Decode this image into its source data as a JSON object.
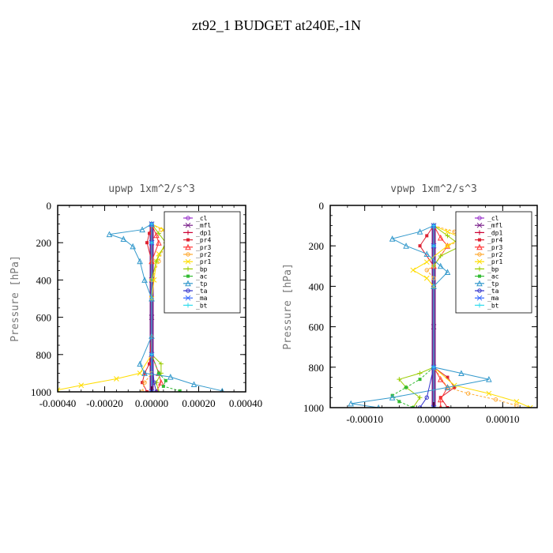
{
  "figure": {
    "title": "zt92_1  BUDGET at240E,-1N"
  },
  "chart_data": [
    {
      "type": "line",
      "title": "upwp  1xm^2/s^3",
      "ylabel": "Pressure [hPa]",
      "xlabel": "",
      "xlim": [
        -0.0004,
        0.0004
      ],
      "ylim": [
        1000,
        0
      ],
      "y_inverted": true,
      "xticks": [
        "-0.00040",
        "-0.00020",
        "0.00000",
        "0.00020",
        "0.00040"
      ],
      "xtick_values": [
        -0.0004,
        -0.0002,
        0,
        0.0002,
        0.0004
      ],
      "yticks": [
        "0",
        "200",
        "400",
        "600",
        "800",
        "1000"
      ],
      "ytick_values": [
        0,
        200,
        400,
        600,
        800,
        1000
      ],
      "grid": false,
      "legend_position": "top-right",
      "series": [
        {
          "name": "_cl",
          "color": "#9933cc",
          "values": [
            [
              0,
              100
            ],
            [
              0,
              200
            ],
            [
              0,
              400
            ],
            [
              0,
              600
            ],
            [
              0,
              800
            ],
            [
              0,
              1000
            ]
          ]
        },
        {
          "name": "_mfl",
          "color": "#7a1f8a",
          "values": [
            [
              0,
              100
            ],
            [
              0,
              200
            ],
            [
              0,
              400
            ],
            [
              0,
              600
            ],
            [
              0,
              800
            ],
            [
              0,
              1000
            ]
          ]
        },
        {
          "name": "_dp1",
          "color": "#cc0033",
          "values": [
            [
              0,
              100
            ],
            [
              0,
              200
            ],
            [
              0,
              400
            ],
            [
              0,
              800
            ],
            [
              0,
              1000
            ]
          ]
        },
        {
          "name": "_pr4",
          "color": "#dd2233",
          "values": [
            [
              0,
              100
            ],
            [
              -1e-05,
              150
            ],
            [
              -2e-05,
              200
            ],
            [
              0,
              300
            ],
            [
              0,
              700
            ],
            [
              -1e-05,
              850
            ],
            [
              -3e-05,
              900
            ],
            [
              -4e-05,
              950
            ],
            [
              -2e-05,
              1000
            ]
          ]
        },
        {
          "name": "_pr3",
          "color": "#ff3333",
          "values": [
            [
              0,
              100
            ],
            [
              2e-05,
              160
            ],
            [
              3e-05,
              200
            ],
            [
              0,
              300
            ],
            [
              0,
              800
            ],
            [
              3e-05,
              900
            ],
            [
              4e-05,
              950
            ],
            [
              2e-05,
              1000
            ]
          ]
        },
        {
          "name": "_pr2",
          "color": "#ffaa33",
          "values": [
            [
              0,
              100
            ],
            [
              4e-05,
              130
            ],
            [
              8e-05,
              160
            ],
            [
              6e-05,
              200
            ],
            [
              3e-05,
              300
            ],
            [
              0,
              400
            ],
            [
              0,
              800
            ],
            [
              0,
              900
            ],
            [
              -3e-05,
              950
            ],
            [
              -4e-05,
              1000
            ]
          ]
        },
        {
          "name": "_pr1",
          "color": "#ffdd00",
          "values": [
            [
              0,
              100
            ],
            [
              5e-05,
              130
            ],
            [
              0.0001,
              165
            ],
            [
              7e-05,
              200
            ],
            [
              3e-05,
              260
            ],
            [
              2e-05,
              300
            ],
            [
              1e-05,
              400
            ],
            [
              0,
              500
            ],
            [
              0,
              800
            ],
            [
              -5e-05,
              900
            ],
            [
              -0.00015,
              930
            ],
            [
              -0.0003,
              965
            ],
            [
              -0.0004,
              990
            ]
          ]
        },
        {
          "name": "_bp",
          "color": "#99cc00",
          "values": [
            [
              0,
              100
            ],
            [
              3e-05,
              150
            ],
            [
              6e-05,
              200
            ],
            [
              2e-05,
              300
            ],
            [
              0,
              400
            ],
            [
              0,
              800
            ],
            [
              4e-05,
              850
            ],
            [
              4e-05,
              900
            ],
            [
              2e-05,
              950
            ],
            [
              3e-05,
              1000
            ]
          ]
        },
        {
          "name": "_ac",
          "color": "#33bb33",
          "values": [
            [
              0,
              100
            ],
            [
              0,
              200
            ],
            [
              0,
              800
            ],
            [
              3e-05,
              900
            ],
            [
              6e-05,
              940
            ],
            [
              5e-05,
              970
            ],
            [
              0.00012,
              995
            ]
          ]
        },
        {
          "name": "_tp",
          "color": "#3399cc",
          "values": [
            [
              0,
              100
            ],
            [
              -4e-05,
              130
            ],
            [
              -0.00018,
              155
            ],
            [
              -0.00012,
              180
            ],
            [
              -8e-05,
              220
            ],
            [
              -5e-05,
              300
            ],
            [
              -3e-05,
              400
            ],
            [
              0,
              500
            ],
            [
              0,
              700
            ],
            [
              -5e-05,
              850
            ],
            [
              -3e-05,
              900
            ],
            [
              8e-05,
              920
            ],
            [
              0.00018,
              960
            ],
            [
              0.0003,
              995
            ]
          ]
        },
        {
          "name": "_ta",
          "color": "#3333cc",
          "values": [
            [
              0,
              100
            ],
            [
              0,
              200
            ],
            [
              0,
              800
            ],
            [
              1e-05,
              950
            ],
            [
              2e-05,
              1000
            ]
          ]
        },
        {
          "name": "_ma",
          "color": "#3366ff",
          "values": [
            [
              0,
              100
            ],
            [
              0,
              200
            ],
            [
              0,
              800
            ],
            [
              0,
              1000
            ]
          ]
        },
        {
          "name": "_bt",
          "color": "#33ddee",
          "values": [
            [
              0,
              100
            ],
            [
              0,
              200
            ],
            [
              0,
              800
            ],
            [
              0,
              1000
            ]
          ]
        }
      ]
    },
    {
      "type": "line",
      "title": "vpwp  1xm^2/s^3",
      "ylabel": "Pressure [hPa]",
      "xlabel": "",
      "xlim": [
        -0.00015,
        0.00015
      ],
      "ylim": [
        1000,
        0
      ],
      "y_inverted": true,
      "xticks": [
        "-0.00010",
        "0.00000",
        "0.00010"
      ],
      "xtick_values": [
        -0.0001,
        0,
        0.0001
      ],
      "yticks": [
        "0",
        "200",
        "400",
        "600",
        "800",
        "1000"
      ],
      "ytick_values": [
        0,
        200,
        400,
        600,
        800,
        1000
      ],
      "grid": false,
      "legend_position": "top-right",
      "series": [
        {
          "name": "_cl",
          "color": "#9933cc",
          "values": [
            [
              0,
              100
            ],
            [
              0,
              200
            ],
            [
              0,
              400
            ],
            [
              0,
              600
            ],
            [
              0,
              800
            ],
            [
              0,
              1000
            ]
          ]
        },
        {
          "name": "_mfl",
          "color": "#7a1f8a",
          "values": [
            [
              0,
              100
            ],
            [
              0,
              200
            ],
            [
              0,
              400
            ],
            [
              0,
              600
            ],
            [
              0,
              800
            ],
            [
              0,
              1000
            ]
          ]
        },
        {
          "name": "_dp1",
          "color": "#cc0033",
          "values": [
            [
              0,
              100
            ],
            [
              0,
              200
            ],
            [
              0,
              400
            ],
            [
              0,
              800
            ],
            [
              0,
              1000
            ]
          ]
        },
        {
          "name": "_pr4",
          "color": "#dd2233",
          "values": [
            [
              0,
              100
            ],
            [
              -1e-05,
              150
            ],
            [
              -2e-05,
              200
            ],
            [
              0,
              300
            ],
            [
              0,
              800
            ],
            [
              2e-05,
              850
            ],
            [
              3e-05,
              900
            ],
            [
              1e-05,
              950
            ],
            [
              2e-05,
              1000
            ]
          ]
        },
        {
          "name": "_pr3",
          "color": "#ff3333",
          "values": [
            [
              0,
              100
            ],
            [
              1e-05,
              160
            ],
            [
              2e-05,
              200
            ],
            [
              0,
              300
            ],
            [
              0,
              800
            ],
            [
              1e-05,
              860
            ],
            [
              2e-05,
              900
            ],
            [
              1e-05,
              960
            ],
            [
              1e-05,
              1000
            ]
          ]
        },
        {
          "name": "_pr2",
          "color": "#ffaa33",
          "values": [
            [
              0,
              100
            ],
            [
              3e-05,
              130
            ],
            [
              5e-05,
              160
            ],
            [
              2e-05,
              200
            ],
            [
              0,
              300
            ],
            [
              -1e-05,
              320
            ],
            [
              0,
              360
            ],
            [
              0,
              800
            ],
            [
              2e-05,
              900
            ],
            [
              5e-05,
              930
            ],
            [
              9e-05,
              960
            ],
            [
              0.00012,
              990
            ]
          ]
        },
        {
          "name": "_pr1",
          "color": "#ffdd00",
          "values": [
            [
              0,
              100
            ],
            [
              2e-05,
              130
            ],
            [
              4e-05,
              160
            ],
            [
              2e-05,
              200
            ],
            [
              -1e-05,
              280
            ],
            [
              -3e-05,
              320
            ],
            [
              -1e-05,
              360
            ],
            [
              0,
              400
            ],
            [
              0,
              800
            ],
            [
              3e-05,
              890
            ],
            [
              8e-05,
              930
            ],
            [
              0.00012,
              970
            ],
            [
              0.00014,
              1000
            ]
          ]
        },
        {
          "name": "_bp",
          "color": "#99cc00",
          "values": [
            [
              0,
              100
            ],
            [
              2e-05,
              150
            ],
            [
              4e-05,
              200
            ],
            [
              1e-05,
              250
            ],
            [
              0,
              300
            ],
            [
              0,
              800
            ],
            [
              -2e-05,
              830
            ],
            [
              -5e-05,
              860
            ],
            [
              -4e-05,
              900
            ],
            [
              -2e-05,
              950
            ],
            [
              -3e-05,
              1000
            ]
          ]
        },
        {
          "name": "_ac",
          "color": "#33bb33",
          "values": [
            [
              0,
              100
            ],
            [
              0,
              200
            ],
            [
              0,
              800
            ],
            [
              -2e-05,
              860
            ],
            [
              -4e-05,
              900
            ],
            [
              -6e-05,
              940
            ],
            [
              -5e-05,
              970
            ],
            [
              -3e-05,
              1000
            ]
          ]
        },
        {
          "name": "_tp",
          "color": "#3399cc",
          "values": [
            [
              0,
              100
            ],
            [
              -2e-05,
              130
            ],
            [
              -6e-05,
              165
            ],
            [
              -4e-05,
              200
            ],
            [
              -1e-05,
              240
            ],
            [
              1e-05,
              300
            ],
            [
              2e-05,
              330
            ],
            [
              0,
              400
            ],
            [
              0,
              800
            ],
            [
              4e-05,
              830
            ],
            [
              8e-05,
              860
            ],
            [
              2e-05,
              900
            ],
            [
              -6e-05,
              950
            ],
            [
              -0.00012,
              980
            ],
            [
              -8e-05,
              1000
            ]
          ]
        },
        {
          "name": "_ta",
          "color": "#3333cc",
          "values": [
            [
              0,
              100
            ],
            [
              0,
              200
            ],
            [
              0,
              800
            ],
            [
              -1e-05,
              950
            ],
            [
              -2e-05,
              1000
            ]
          ]
        },
        {
          "name": "_ma",
          "color": "#3366ff",
          "values": [
            [
              0,
              100
            ],
            [
              0,
              200
            ],
            [
              0,
              800
            ],
            [
              0,
              1000
            ]
          ]
        },
        {
          "name": "_bt",
          "color": "#33ddee",
          "values": [
            [
              0,
              100
            ],
            [
              0,
              200
            ],
            [
              0,
              800
            ],
            [
              0,
              1000
            ]
          ]
        }
      ]
    }
  ]
}
